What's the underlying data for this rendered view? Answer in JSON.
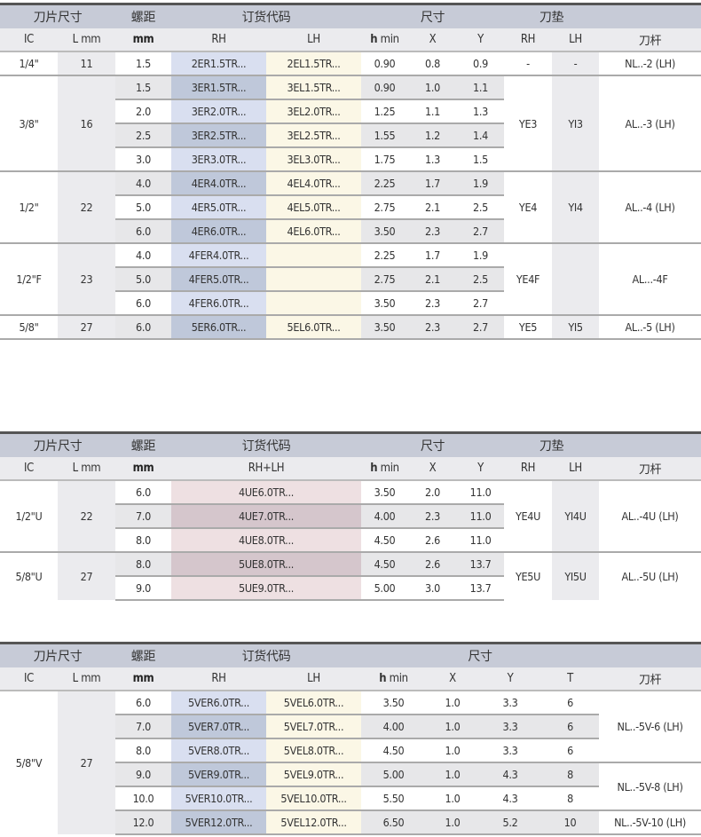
{
  "tables": [
    {
      "h1": [
        [
          "刀片尺寸",
          2
        ],
        [
          "螺距",
          1
        ],
        [
          "订货代码",
          2
        ],
        [
          "尺寸",
          3
        ],
        [
          "刀垫",
          2
        ],
        [
          "",
          1
        ]
      ],
      "h2": [
        "IC",
        "L mm",
        "mm",
        "RH",
        "LH",
        "h min",
        "X",
        "Y",
        "RH",
        "LH",
        "刀杆"
      ],
      "code_cols": [
        "rh",
        "lh"
      ],
      "num_cols": 3,
      "right": [
        "srh",
        "slh",
        "hold"
      ],
      "groups": [
        {
          "ic": "1/4\"",
          "l": "11",
          "rows": [
            [
              "1.5",
              "2ER1.5TR...",
              "2EL1.5TR...",
              "0.90",
              "0.8",
              "0.9"
            ]
          ],
          "right": [
            [
              [
                "-",
                1
              ]
            ],
            [
              [
                "-",
                1
              ]
            ],
            [
              [
                "NL..-2 (LH)",
                1
              ]
            ]
          ]
        },
        {
          "ic": "3/8\"",
          "l": "16",
          "rows": [
            [
              "1.5",
              "3ER1.5TR...",
              "3EL1.5TR...",
              "0.90",
              "1.0",
              "1.1"
            ],
            [
              "2.0",
              "3ER2.0TR...",
              "3EL2.0TR...",
              "1.25",
              "1.1",
              "1.3"
            ],
            [
              "2.5",
              "3ER2.5TR...",
              "3EL2.5TR...",
              "1.55",
              "1.2",
              "1.4"
            ],
            [
              "3.0",
              "3ER3.0TR...",
              "3EL3.0TR...",
              "1.75",
              "1.3",
              "1.5"
            ]
          ],
          "right": [
            [
              [
                "YE3",
                4
              ]
            ],
            [
              [
                "YI3",
                4
              ]
            ],
            [
              [
                "AL..-3 (LH)",
                4
              ]
            ]
          ]
        },
        {
          "ic": "1/2\"",
          "l": "22",
          "rows": [
            [
              "4.0",
              "4ER4.0TR...",
              "4EL4.0TR...",
              "2.25",
              "1.7",
              "1.9"
            ],
            [
              "5.0",
              "4ER5.0TR...",
              "4EL5.0TR...",
              "2.75",
              "2.1",
              "2.5"
            ],
            [
              "6.0",
              "4ER6.0TR...",
              "4EL6.0TR...",
              "3.50",
              "2.3",
              "2.7"
            ]
          ],
          "right": [
            [
              [
                "YE4",
                3
              ]
            ],
            [
              [
                "YI4",
                3
              ]
            ],
            [
              [
                "AL..-4 (LH)",
                3
              ]
            ]
          ]
        },
        {
          "ic": "1/2\"F",
          "l": "23",
          "rows": [
            [
              "4.0",
              "4FER4.0TR...",
              "",
              "2.25",
              "1.7",
              "1.9"
            ],
            [
              "5.0",
              "4FER5.0TR...",
              "",
              "2.75",
              "2.1",
              "2.5"
            ],
            [
              "6.0",
              "4FER6.0TR...",
              "",
              "3.50",
              "2.3",
              "2.7"
            ]
          ],
          "right": [
            [
              [
                "YE4F",
                3
              ]
            ],
            [
              [
                "",
                3
              ]
            ],
            [
              [
                "AL...-4F",
                3
              ]
            ]
          ]
        },
        {
          "ic": "5/8\"",
          "l": "27",
          "rows": [
            [
              "6.0",
              "5ER6.0TR...",
              "5EL6.0TR...",
              "3.50",
              "2.3",
              "2.7"
            ]
          ],
          "right": [
            [
              [
                "YE5",
                1
              ]
            ],
            [
              [
                "YI5",
                1
              ]
            ],
            [
              [
                "AL..-5 (LH)",
                1
              ]
            ]
          ]
        }
      ]
    },
    {
      "h1": [
        [
          "刀片尺寸",
          2
        ],
        [
          "螺距",
          1
        ],
        [
          "订货代码",
          1
        ],
        [
          "尺寸",
          3
        ],
        [
          "刀垫",
          2
        ],
        [
          "",
          1
        ]
      ],
      "h2": [
        "IC",
        "L mm",
        "mm",
        "RH+LH",
        "h min",
        "X",
        "Y",
        "RH",
        "LH",
        "刀杆"
      ],
      "code_cols": [
        "pk"
      ],
      "num_cols": 3,
      "right": [
        "srh",
        "slh",
        "hold"
      ],
      "groups": [
        {
          "ic": "1/2\"U",
          "l": "22",
          "rows": [
            [
              "6.0",
              "4UE6.0TR...",
              "3.50",
              "2.0",
              "11.0"
            ],
            [
              "7.0",
              "4UE7.0TR...",
              "4.00",
              "2.3",
              "11.0"
            ],
            [
              "8.0",
              "4UE8.0TR...",
              "4.50",
              "2.6",
              "11.0"
            ]
          ],
          "right": [
            [
              [
                "YE4U",
                3
              ]
            ],
            [
              [
                "YI4U",
                3
              ]
            ],
            [
              [
                "AL..-4U (LH)",
                3
              ]
            ]
          ]
        },
        {
          "ic": "5/8\"U",
          "l": "27",
          "rows": [
            [
              "8.0",
              "5UE8.0TR...",
              "4.50",
              "2.6",
              "13.7"
            ],
            [
              "9.0",
              "5UE9.0TR...",
              "5.00",
              "3.0",
              "13.7"
            ]
          ],
          "right": [
            [
              [
                "YE5U",
                2
              ]
            ],
            [
              [
                "YI5U",
                2
              ]
            ],
            [
              [
                "AL..-5U (LH)",
                2
              ]
            ]
          ]
        }
      ]
    },
    {
      "h1": [
        [
          "刀片尺寸",
          2
        ],
        [
          "螺距",
          1
        ],
        [
          "订货代码",
          2
        ],
        [
          "尺寸",
          4
        ],
        [
          "",
          1
        ]
      ],
      "h2": [
        "IC",
        "L mm",
        "mm",
        "RH",
        "LH",
        "h min",
        "X",
        "Y",
        "T",
        "刀杆"
      ],
      "code_cols": [
        "rh",
        "lh"
      ],
      "num_cols": 4,
      "right": [
        "hold"
      ],
      "groups": [
        {
          "ic": "5/8\"V",
          "l": "27",
          "rows": [
            [
              "6.0",
              "5VER6.0TR...",
              "5VEL6.0TR...",
              "3.50",
              "1.0",
              "3.3",
              "6"
            ],
            [
              "7.0",
              "5VER7.0TR...",
              "5VEL7.0TR...",
              "4.00",
              "1.0",
              "3.3",
              "6"
            ],
            [
              "8.0",
              "5VER8.0TR...",
              "5VEL8.0TR...",
              "4.50",
              "1.0",
              "3.3",
              "6"
            ],
            [
              "9.0",
              "5VER9.0TR...",
              "5VEL9.0TR...",
              "5.00",
              "1.0",
              "4.3",
              "8"
            ],
            [
              "10.0",
              "5VER10.0TR...",
              "5VEL10.0TR...",
              "5.50",
              "1.0",
              "4.3",
              "8"
            ],
            [
              "12.0",
              "5VER12.0TR...",
              "5VEL12.0TR...",
              "6.50",
              "1.0",
              "5.2",
              "10"
            ]
          ],
          "right": [
            [
              [
                "NL..-5V-6 (LH)",
                3
              ],
              [
                "NL..-5V-8 (LH)",
                2
              ],
              [
                "NL..-5V-10 (LH)",
                1
              ]
            ]
          ]
        }
      ]
    }
  ]
}
